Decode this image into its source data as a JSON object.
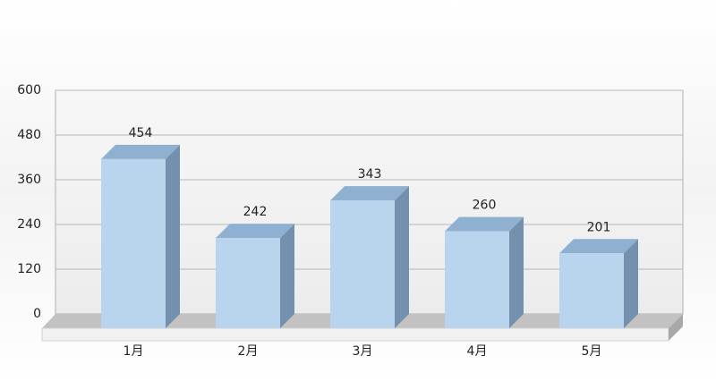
{
  "chart_data": {
    "type": "bar3d",
    "categories": [
      "1月",
      "2月",
      "3月",
      "4月",
      "5月"
    ],
    "values": [
      454,
      242,
      343,
      260,
      201
    ],
    "color": "#b9d5ee",
    "ylim": [
      0,
      600
    ],
    "yticks": [
      0,
      120,
      240,
      360,
      480,
      600
    ],
    "grid": true
  }
}
